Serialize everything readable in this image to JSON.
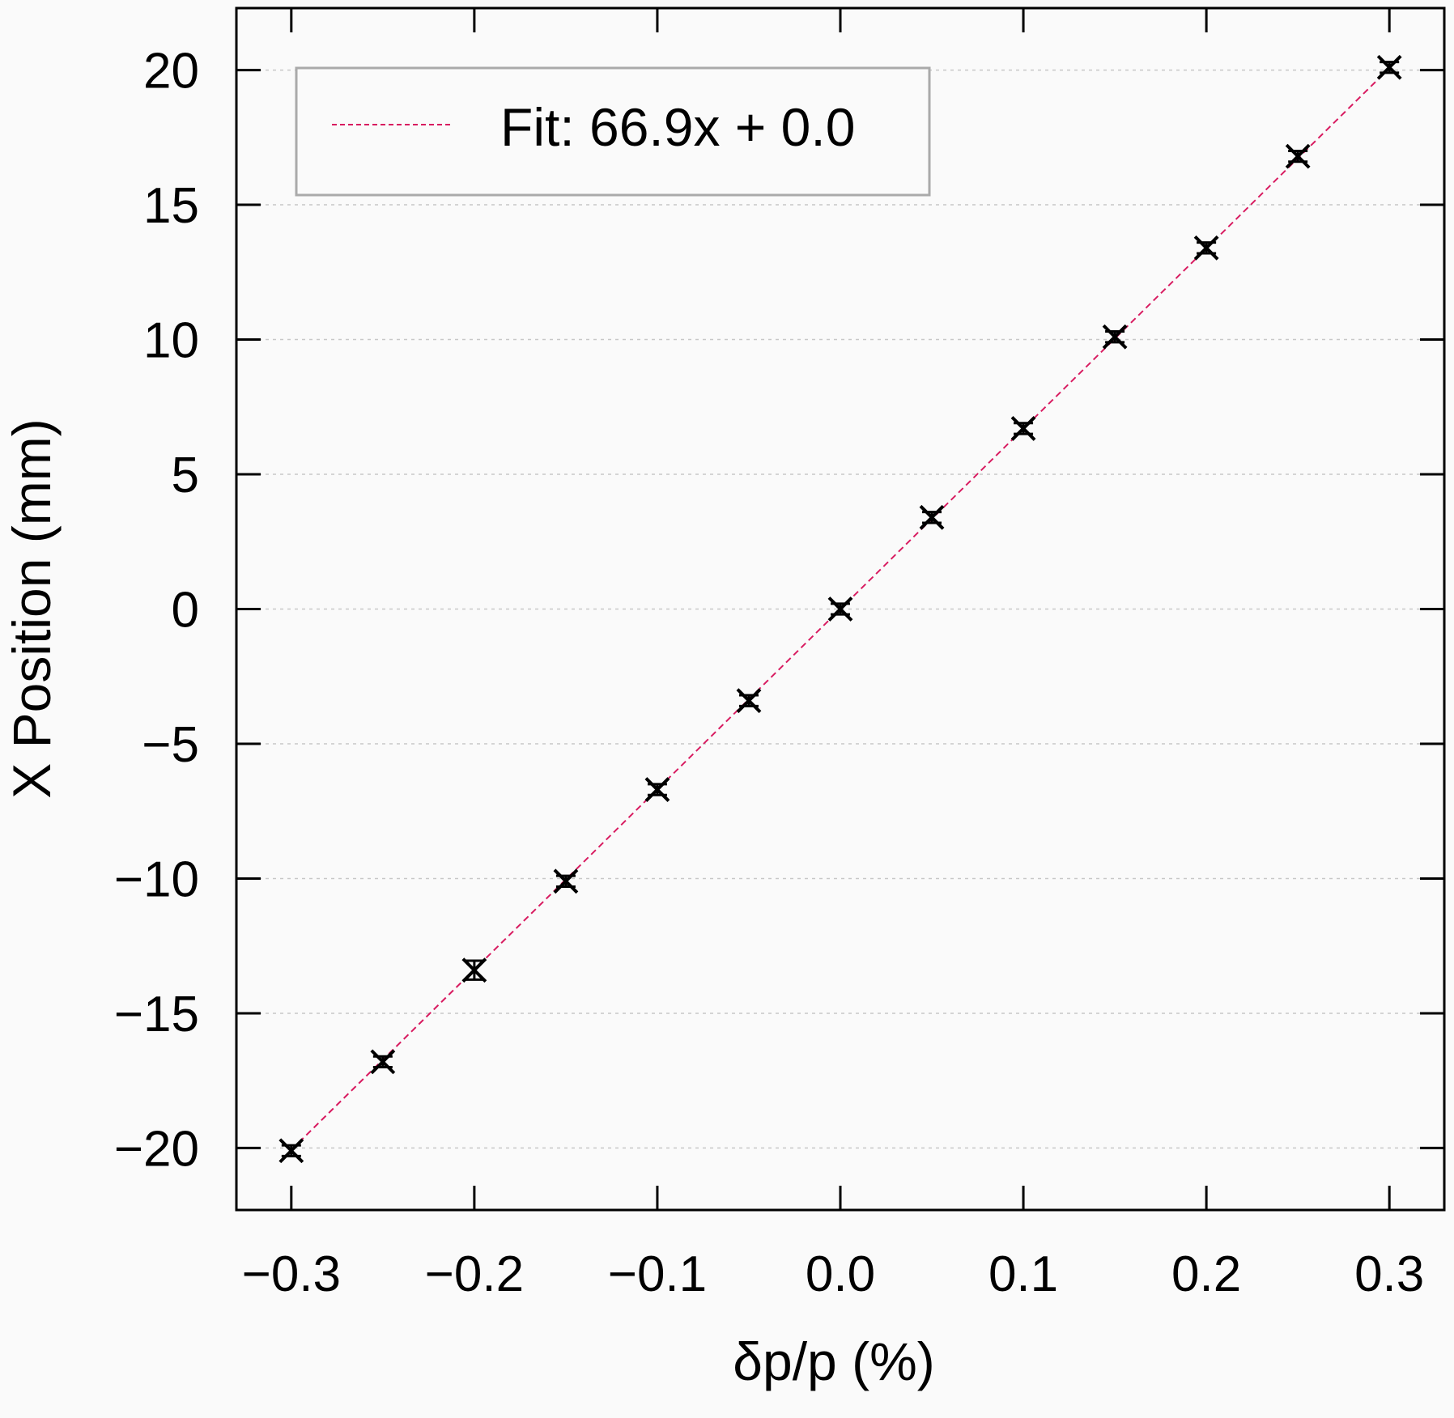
{
  "chart_data": {
    "type": "scatter",
    "xlabel": "δp/p (%)",
    "ylabel": "X Position (mm)",
    "xlim": [
      -0.33,
      0.33
    ],
    "ylim": [
      -22.3,
      22.3
    ],
    "x_ticks": [
      -0.3,
      -0.2,
      -0.1,
      0.0,
      0.1,
      0.2,
      0.3
    ],
    "x_tick_labels": [
      "−0.3",
      "−0.2",
      "−0.1",
      "0.0",
      "0.1",
      "0.2",
      "0.3"
    ],
    "y_ticks": [
      -20,
      -15,
      -10,
      -5,
      0,
      5,
      10,
      15,
      20
    ],
    "y_tick_labels": [
      "−20",
      "−15",
      "−10",
      "−5",
      "0",
      "5",
      "10",
      "15",
      "20"
    ],
    "grid": "horizontal dotted",
    "series": [
      {
        "kind": "points-with-errorbars",
        "marker": "x",
        "color": "#000000",
        "x": [
          -0.3,
          -0.25,
          -0.2,
          -0.15,
          -0.1,
          -0.05,
          0.0,
          0.05,
          0.1,
          0.15,
          0.2,
          0.25,
          0.3
        ],
        "y": [
          -20.1,
          -16.8,
          -13.4,
          -10.1,
          -6.7,
          -3.4,
          0.0,
          3.4,
          6.7,
          10.1,
          13.4,
          16.8,
          20.1
        ],
        "yerr": [
          0.2,
          0.2,
          0.35,
          0.2,
          0.2,
          0.2,
          0.2,
          0.2,
          0.2,
          0.2,
          0.2,
          0.2,
          0.2
        ]
      },
      {
        "kind": "fit-line",
        "name": "Fit: 66.9x + 0.0",
        "slope": 66.9,
        "intercept": 0.0,
        "x_range": [
          -0.3,
          0.3
        ],
        "color": "#d81b60",
        "style": "dashed"
      }
    ],
    "legend": {
      "position": "top-left",
      "entries": [
        "Fit: 66.9x + 0.0"
      ]
    }
  }
}
